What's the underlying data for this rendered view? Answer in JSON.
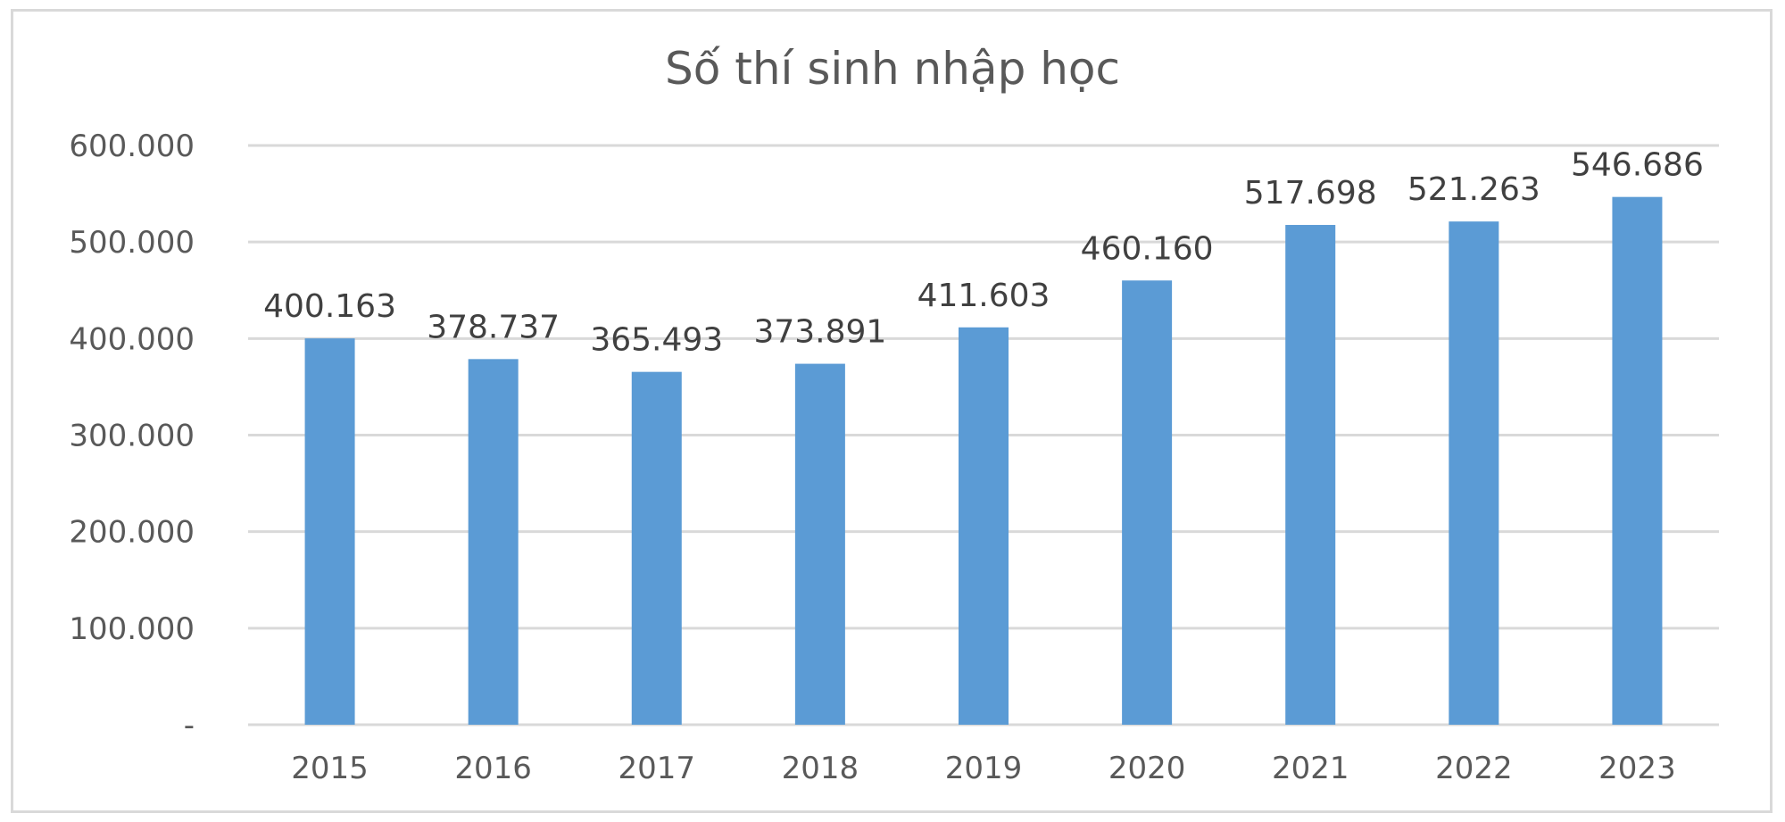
{
  "chart_data": {
    "type": "bar",
    "title": "Số thí sinh nhập học",
    "xlabel": "",
    "ylabel": "",
    "categories": [
      "2015",
      "2016",
      "2017",
      "2018",
      "2019",
      "2020",
      "2021",
      "2022",
      "2023"
    ],
    "values": [
      400163,
      378737,
      365493,
      373891,
      411603,
      460160,
      517698,
      521263,
      546686
    ],
    "data_labels": [
      "400.163",
      "378.737",
      "365.493",
      "373.891",
      "411.603",
      "460.160",
      "517.698",
      "521.263",
      "546.686"
    ],
    "y_ticks": [
      0,
      100000,
      200000,
      300000,
      400000,
      500000,
      600000
    ],
    "y_tick_labels": [
      "-",
      "100.000",
      "200.000",
      "300.000",
      "400.000",
      "500.000",
      "600.000"
    ],
    "ylim": [
      0,
      600000
    ],
    "grid": true,
    "legend": "none",
    "colors": {
      "bar": "#5b9bd5",
      "grid": "#d9d9d9",
      "text": "#595959"
    }
  }
}
